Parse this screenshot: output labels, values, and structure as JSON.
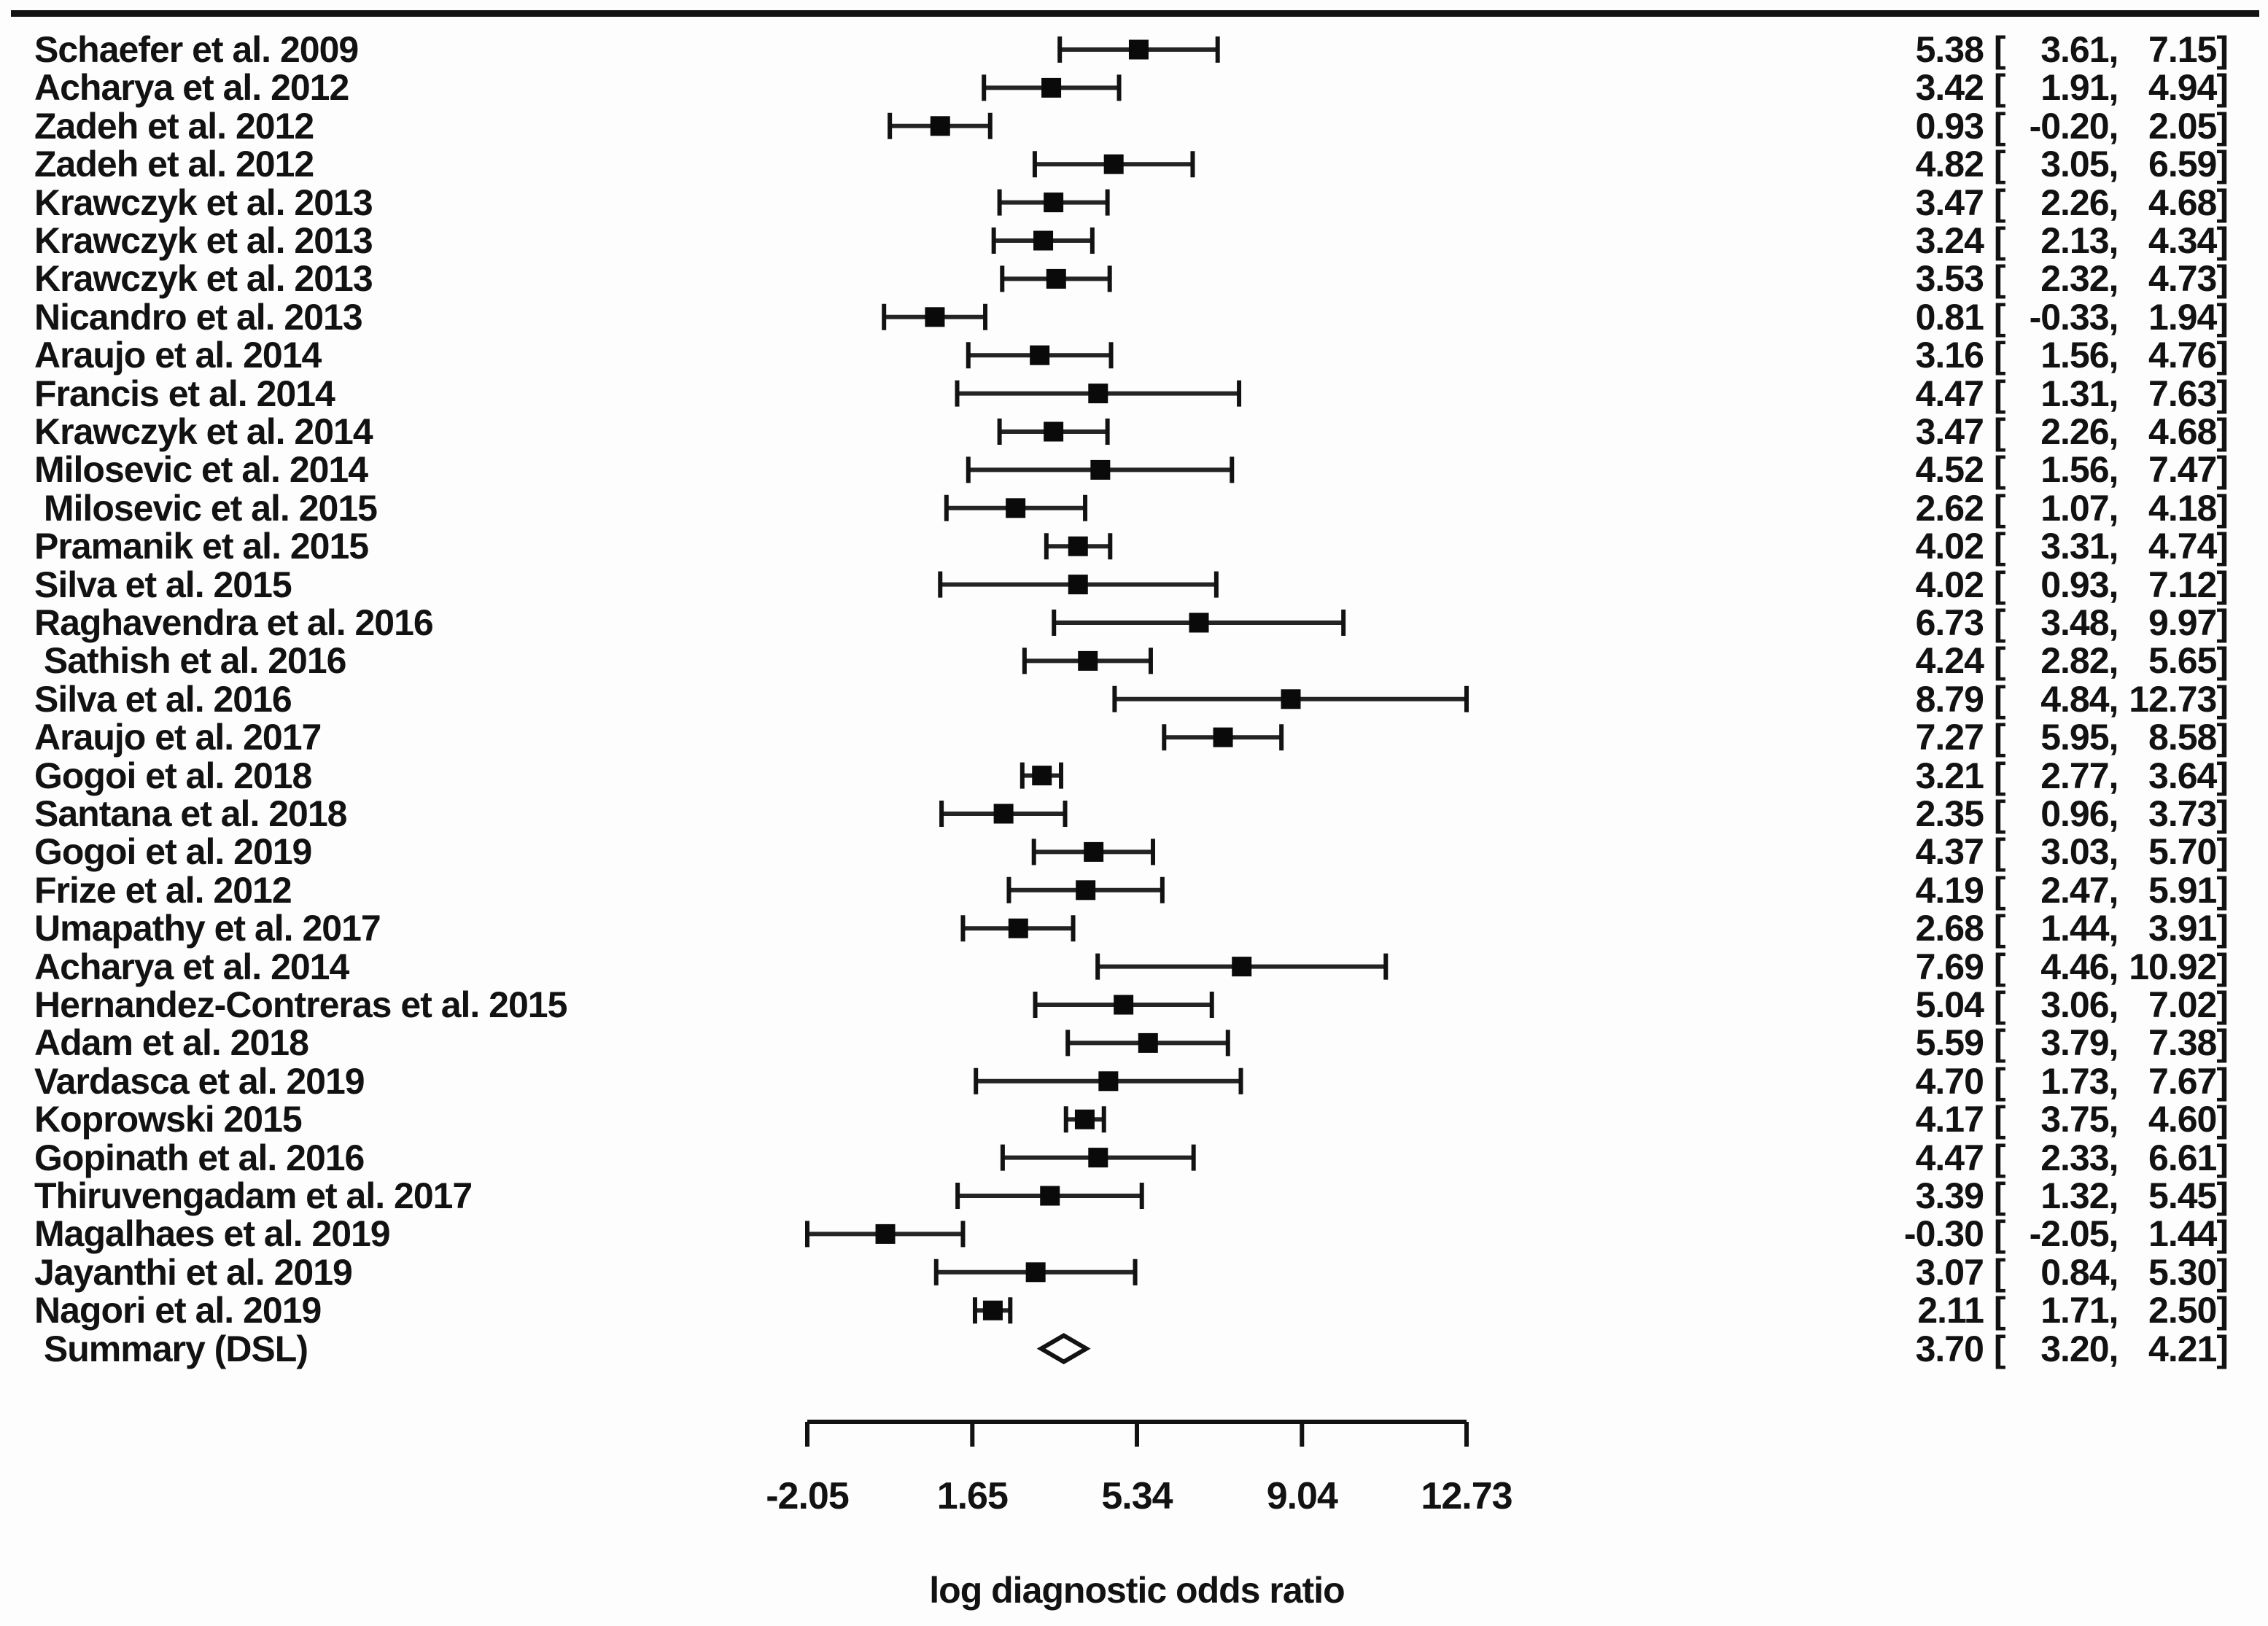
{
  "figure": {
    "background": "#fdfdfd",
    "ink": "#121212"
  },
  "chart_data": {
    "type": "scatter",
    "variant": "forest-plot",
    "title": "",
    "xlabel": "log diagnostic odds ratio",
    "xlim": [
      -2.05,
      12.73
    ],
    "x_ticks": [
      -2.05,
      1.65,
      5.34,
      9.04,
      12.73
    ],
    "x_tick_labels": [
      "-2.05",
      "1.65",
      "5.34",
      "9.04",
      "12.73"
    ],
    "grid": false,
    "legend": false,
    "value_format": {
      "open": "[",
      "sep": ",",
      "close": "]"
    },
    "studies": [
      {
        "label": "Schaefer et al. 2009",
        "est": 5.38,
        "lo": 3.61,
        "hi": 7.15
      },
      {
        "label": "Acharya et al. 2012",
        "est": 3.42,
        "lo": 1.91,
        "hi": 4.94
      },
      {
        "label": "Zadeh et al. 2012",
        "est": 0.93,
        "lo": -0.2,
        "hi": 2.05
      },
      {
        "label": "Zadeh et al. 2012",
        "est": 4.82,
        "lo": 3.05,
        "hi": 6.59
      },
      {
        "label": "Krawczyk et al. 2013",
        "est": 3.47,
        "lo": 2.26,
        "hi": 4.68
      },
      {
        "label": "Krawczyk et al. 2013",
        "est": 3.24,
        "lo": 2.13,
        "hi": 4.34
      },
      {
        "label": "Krawczyk et al. 2013",
        "est": 3.53,
        "lo": 2.32,
        "hi": 4.73
      },
      {
        "label": "Nicandro et al. 2013",
        "est": 0.81,
        "lo": -0.33,
        "hi": 1.94
      },
      {
        "label": "Araujo et al. 2014",
        "est": 3.16,
        "lo": 1.56,
        "hi": 4.76
      },
      {
        "label": "Francis et al. 2014",
        "est": 4.47,
        "lo": 1.31,
        "hi": 7.63
      },
      {
        "label": "Krawczyk et al. 2014",
        "est": 3.47,
        "lo": 2.26,
        "hi": 4.68
      },
      {
        "label": "Milosevic et al. 2014",
        "est": 4.52,
        "lo": 1.56,
        "hi": 7.47
      },
      {
        "label": " Milosevic et al. 2015",
        "est": 2.62,
        "lo": 1.07,
        "hi": 4.18
      },
      {
        "label": "Pramanik et al. 2015",
        "est": 4.02,
        "lo": 3.31,
        "hi": 4.74
      },
      {
        "label": "Silva et al. 2015",
        "est": 4.02,
        "lo": 0.93,
        "hi": 7.12
      },
      {
        "label": "Raghavendra et al. 2016",
        "est": 6.73,
        "lo": 3.48,
        "hi": 9.97
      },
      {
        "label": " Sathish et al. 2016",
        "est": 4.24,
        "lo": 2.82,
        "hi": 5.65
      },
      {
        "label": "Silva et al. 2016",
        "est": 8.79,
        "lo": 4.84,
        "hi": 12.73
      },
      {
        "label": "Araujo et al. 2017",
        "est": 7.27,
        "lo": 5.95,
        "hi": 8.58
      },
      {
        "label": "Gogoi et al. 2018",
        "est": 3.21,
        "lo": 2.77,
        "hi": 3.64
      },
      {
        "label": "Santana et al. 2018",
        "est": 2.35,
        "lo": 0.96,
        "hi": 3.73
      },
      {
        "label": "Gogoi et al. 2019",
        "est": 4.37,
        "lo": 3.03,
        "hi": 5.7
      },
      {
        "label": "Frize et al. 2012",
        "est": 4.19,
        "lo": 2.47,
        "hi": 5.91
      },
      {
        "label": "Umapathy et al. 2017",
        "est": 2.68,
        "lo": 1.44,
        "hi": 3.91
      },
      {
        "label": "Acharya et al. 2014",
        "est": 7.69,
        "lo": 4.46,
        "hi": 10.92
      },
      {
        "label": "Hernandez-Contreras et al. 2015",
        "est": 5.04,
        "lo": 3.06,
        "hi": 7.02
      },
      {
        "label": "Adam et al. 2018",
        "est": 5.59,
        "lo": 3.79,
        "hi": 7.38
      },
      {
        "label": "Vardasca et al. 2019",
        "est": 4.7,
        "lo": 1.73,
        "hi": 7.67
      },
      {
        "label": "Koprowski 2015",
        "est": 4.17,
        "lo": 3.75,
        "hi": 4.6
      },
      {
        "label": "Gopinath et al. 2016",
        "est": 4.47,
        "lo": 2.33,
        "hi": 6.61
      },
      {
        "label": "Thiruvengadam et al. 2017",
        "est": 3.39,
        "lo": 1.32,
        "hi": 5.45
      },
      {
        "label": "Magalhaes et al. 2019",
        "est": -0.3,
        "lo": -2.05,
        "hi": 1.44
      },
      {
        "label": "Jayanthi et al. 2019",
        "est": 3.07,
        "lo": 0.84,
        "hi": 5.3
      },
      {
        "label": "Nagori et al. 2019",
        "est": 2.11,
        "lo": 1.71,
        "hi": 2.5
      },
      {
        "label": " Summary (DSL)",
        "est": 3.7,
        "lo": 3.2,
        "hi": 4.21,
        "summary": true
      }
    ]
  }
}
